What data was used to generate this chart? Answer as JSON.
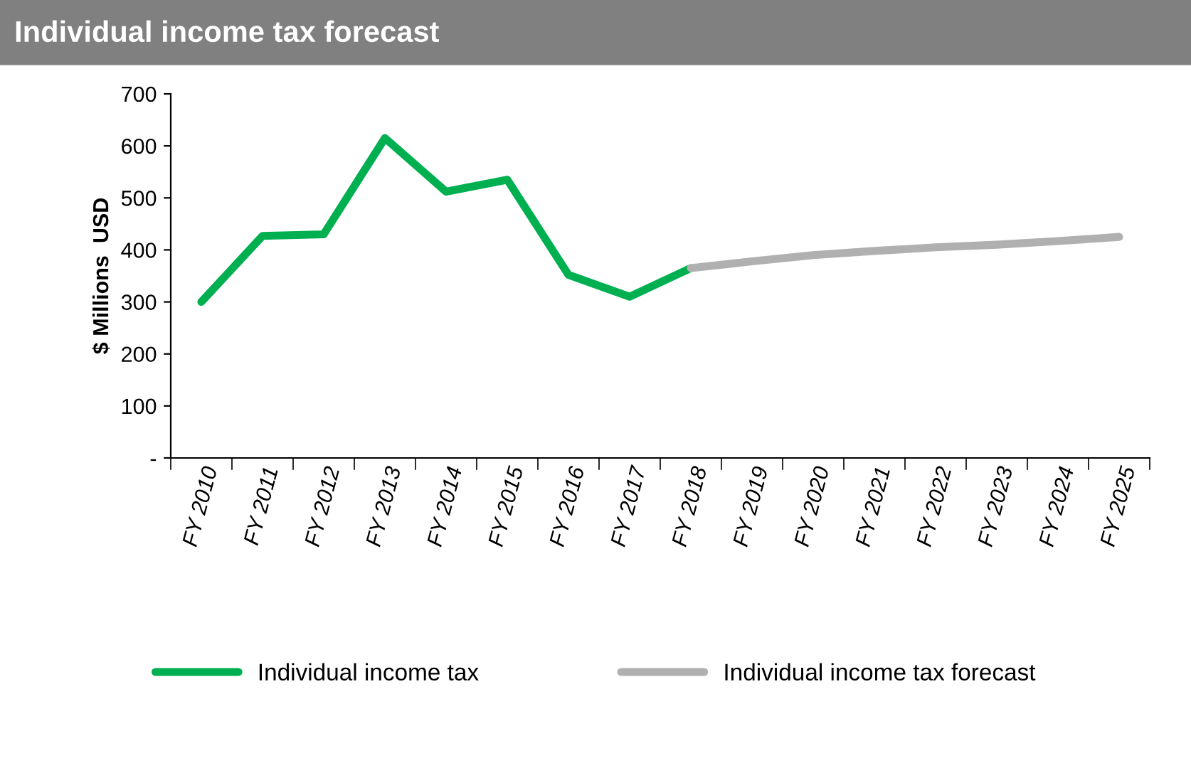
{
  "chart_data": {
    "type": "line",
    "title": "Individual income tax forecast",
    "ylabel": "$ Millions  USD",
    "categories": [
      "FY 2010",
      "FY 2011",
      "FY 2012",
      "FY 2013",
      "FY 2014",
      "FY 2015",
      "FY 2016",
      "FY 2017",
      "FY 2018",
      "FY 2019",
      "FY 2020",
      "FY 2021",
      "FY 2022",
      "FY 2023",
      "FY 2024",
      "FY 2025"
    ],
    "series": [
      {
        "name": "Individual income tax",
        "color": "#00b050",
        "values": [
          300,
          427,
          430,
          615,
          512,
          535,
          352,
          310,
          365,
          null,
          null,
          null,
          null,
          null,
          null,
          null
        ]
      },
      {
        "name": "Individual income tax forecast",
        "color": "#b0b0b0",
        "values": [
          null,
          null,
          null,
          null,
          null,
          null,
          null,
          null,
          365,
          378,
          390,
          398,
          405,
          410,
          417,
          425
        ]
      }
    ],
    "ylim": [
      0,
      700
    ],
    "yticks": [
      {
        "value": 0,
        "label": "-"
      },
      100,
      200,
      300,
      400,
      500,
      600,
      700
    ],
    "grid": false,
    "legend": "bottom",
    "marker": "none",
    "line_style": "solid"
  }
}
